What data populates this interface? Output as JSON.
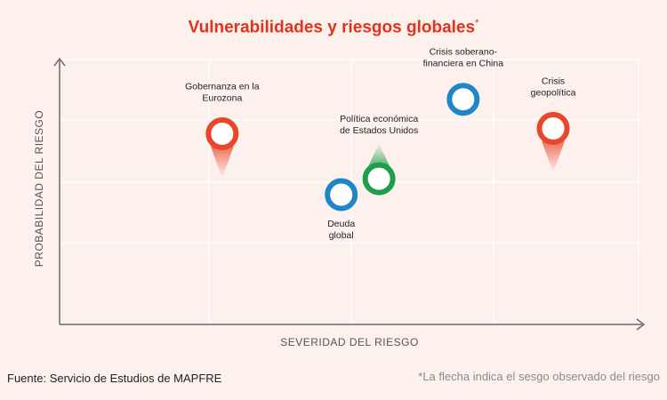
{
  "colors": {
    "background": "#fdf1ee",
    "title": "#e0331c",
    "axis": "#6b6b6b",
    "grid": "#ffffff",
    "red": "#e8472b",
    "blue": "#1f86c8",
    "green": "#1e9e4a"
  },
  "chart_data": {
    "type": "scatter",
    "title": "Vulnerabilidades y riesgos globales",
    "title_mark": "*",
    "xlabel": "SEVERIDAD DEL RIESGO",
    "ylabel": "PROBABILIDAD DEL RIESGO",
    "xlim": [
      0,
      100
    ],
    "ylim": [
      0,
      100
    ],
    "grid": true,
    "points": [
      {
        "label_lines": [
          "Gobernanza en la",
          "Eurozona"
        ],
        "x": 28,
        "y": 72,
        "color": "red",
        "bias": "down"
      },
      {
        "label_lines": [
          "Deuda",
          "global"
        ],
        "x": 48.5,
        "y": 49,
        "color": "blue",
        "bias": "none"
      },
      {
        "label_lines": [
          "Política económica",
          "de Estados Unidos"
        ],
        "x": 55,
        "y": 55,
        "color": "green",
        "bias": "up"
      },
      {
        "label_lines": [
          "Crisis soberano-",
          "financiera en China"
        ],
        "x": 69.5,
        "y": 85,
        "color": "blue",
        "bias": "none"
      },
      {
        "label_lines": [
          "Crisis",
          "geopolítica"
        ],
        "x": 85,
        "y": 74,
        "color": "red",
        "bias": "down"
      }
    ]
  },
  "footer": {
    "source": "Fuente: Servicio de Estudios de MAPFRE",
    "note": "*La flecha indica el sesgo observado del riesgo"
  }
}
